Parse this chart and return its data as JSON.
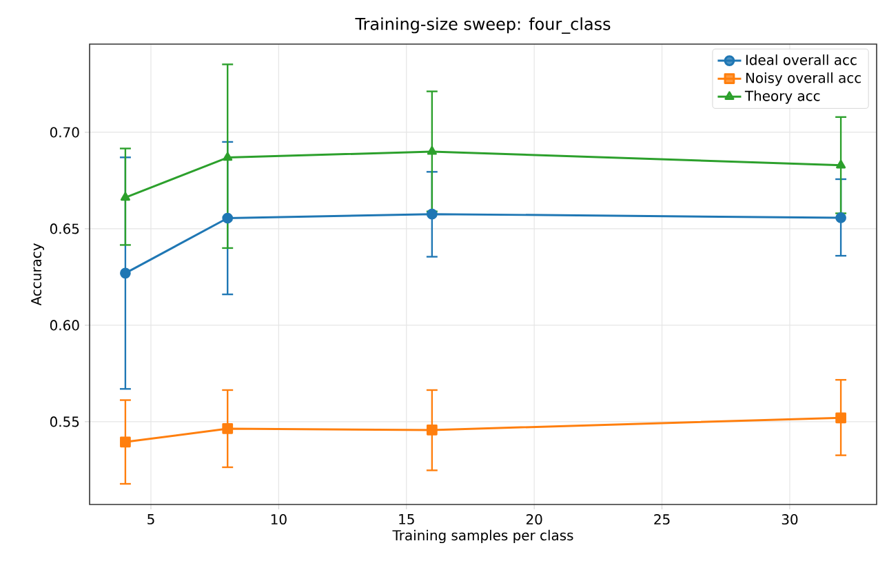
{
  "chart_data": {
    "type": "line",
    "title": "Training-size sweep: four_class",
    "xlabel": "Training samples per class",
    "ylabel": "Accuracy",
    "x": [
      4,
      8,
      16,
      32
    ],
    "series": [
      {
        "name": "Ideal overall acc",
        "color": "#1f77b4",
        "marker": "circle",
        "values": [
          0.627,
          0.6555,
          0.6576,
          0.6557
        ],
        "errors": [
          [
            0.567,
            0.687
          ],
          [
            0.616,
            0.695
          ],
          [
            0.6355,
            0.6795
          ],
          [
            0.636,
            0.6757
          ]
        ]
      },
      {
        "name": "Noisy overall acc",
        "color": "#ff7f0e",
        "marker": "square",
        "values": [
          0.5395,
          0.5464,
          0.5457,
          0.552
        ],
        "errors": [
          [
            0.5178,
            0.5612
          ],
          [
            0.5264,
            0.5664
          ],
          [
            0.5248,
            0.5664
          ],
          [
            0.5326,
            0.5717
          ]
        ]
      },
      {
        "name": "Theory acc",
        "color": "#2ca02c",
        "marker": "triangle",
        "values": [
          0.6662,
          0.6869,
          0.69,
          0.6829
        ],
        "errors": [
          [
            0.6416,
            0.6916
          ],
          [
            0.64,
            0.7352
          ],
          [
            0.659,
            0.7212
          ],
          [
            0.658,
            0.7079
          ]
        ]
      }
    ],
    "xlim": [
      2.6,
      33.4
    ],
    "ylim": [
      0.5071,
      0.7457
    ],
    "xticks": [
      5,
      10,
      15,
      20,
      25,
      30
    ],
    "yticks": [
      0.55,
      {
        "value": 0.6,
        "label": "0.60"
      },
      0.65,
      {
        "value": 0.7,
        "label": "0.70"
      }
    ],
    "grid": true,
    "legend": "top right",
    "line_style": "solid"
  }
}
